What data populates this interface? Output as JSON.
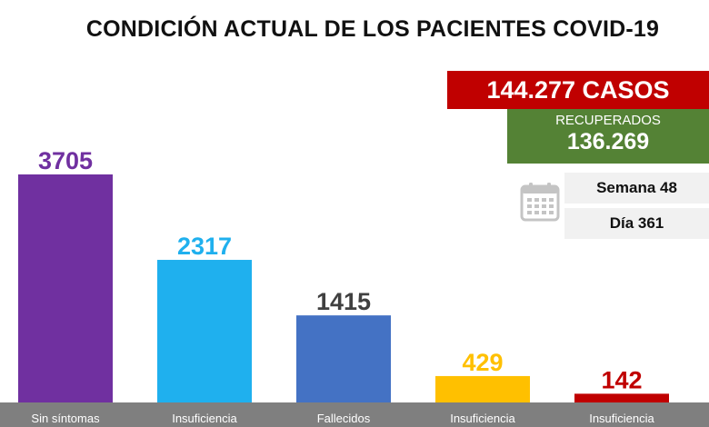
{
  "title": "CONDICIÓN ACTUAL DE LOS PACIENTES COVID-19",
  "cases": {
    "label": "144.277 CASOS",
    "color": "#c00000"
  },
  "recovered": {
    "label": "RECUPERADOS",
    "value": "136.269",
    "color": "#548235"
  },
  "calendar": {
    "icon": "calendar-icon",
    "week": "Semana 48",
    "day": "Día 361"
  },
  "chart_data": {
    "type": "bar",
    "categories": [
      "Sin síntomas",
      "Insuficiencia",
      "Fallecidos",
      "Insuficiencia",
      "Insuficiencia"
    ],
    "values": [
      3705,
      2317,
      1415,
      429,
      142
    ],
    "value_labels": [
      "3705",
      "2317",
      "1415",
      "429",
      "142"
    ],
    "colors": [
      "#7030a0",
      "#1fb0ee",
      "#4472c4",
      "#ffc000",
      "#c00000"
    ],
    "label_colors": [
      "#7030a0",
      "#1fb0ee",
      "#404040",
      "#ffc000",
      "#c00000"
    ],
    "ylim": [
      0,
      3705
    ],
    "grid": false,
    "legend": "none"
  }
}
